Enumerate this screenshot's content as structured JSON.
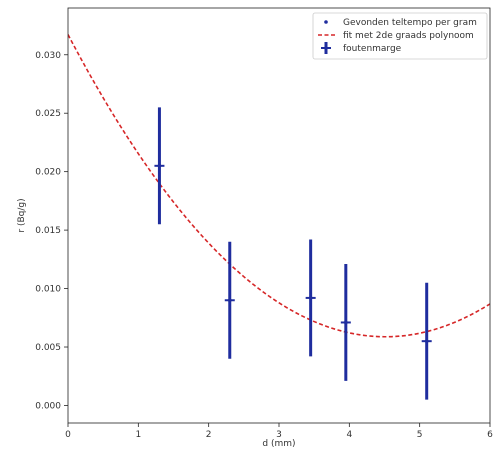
{
  "chart_data": {
    "type": "scatter",
    "xlabel": "d (mm)",
    "ylabel": "r (Bq/g)",
    "xlim": [
      0,
      6
    ],
    "ylim": [
      -0.0015,
      0.034
    ],
    "xticks": [
      0,
      1,
      2,
      3,
      4,
      5,
      6
    ],
    "xtick_labels": [
      "0",
      "1",
      "2",
      "3",
      "4",
      "5",
      "6"
    ],
    "yticks": [
      0.0,
      0.005,
      0.01,
      0.015,
      0.02,
      0.025,
      0.03
    ],
    "ytick_labels": [
      "0.000",
      "0.005",
      "0.010",
      "0.015",
      "0.020",
      "0.025",
      "0.030"
    ],
    "grid": false,
    "legend_position": "top-right",
    "series": [
      {
        "name": "Gevonden teltempo per gram",
        "kind": "points",
        "color": "#1f2d9e",
        "x": [
          1.3,
          2.3,
          3.45,
          3.95,
          5.1
        ],
        "y": [
          0.0205,
          0.009,
          0.0092,
          0.0071,
          0.0055
        ]
      },
      {
        "name": "fit met 2de graads polynoom",
        "kind": "fit-line",
        "color": "#d62728",
        "coefficients": {
          "a": 0.00127,
          "b": -0.01146,
          "c": 0.03173
        }
      },
      {
        "name": "foutenmarge",
        "kind": "errorbars",
        "color": "#1f2d9e",
        "yerr": [
          0.005,
          0.005,
          0.005,
          0.005,
          0.005
        ]
      }
    ]
  }
}
